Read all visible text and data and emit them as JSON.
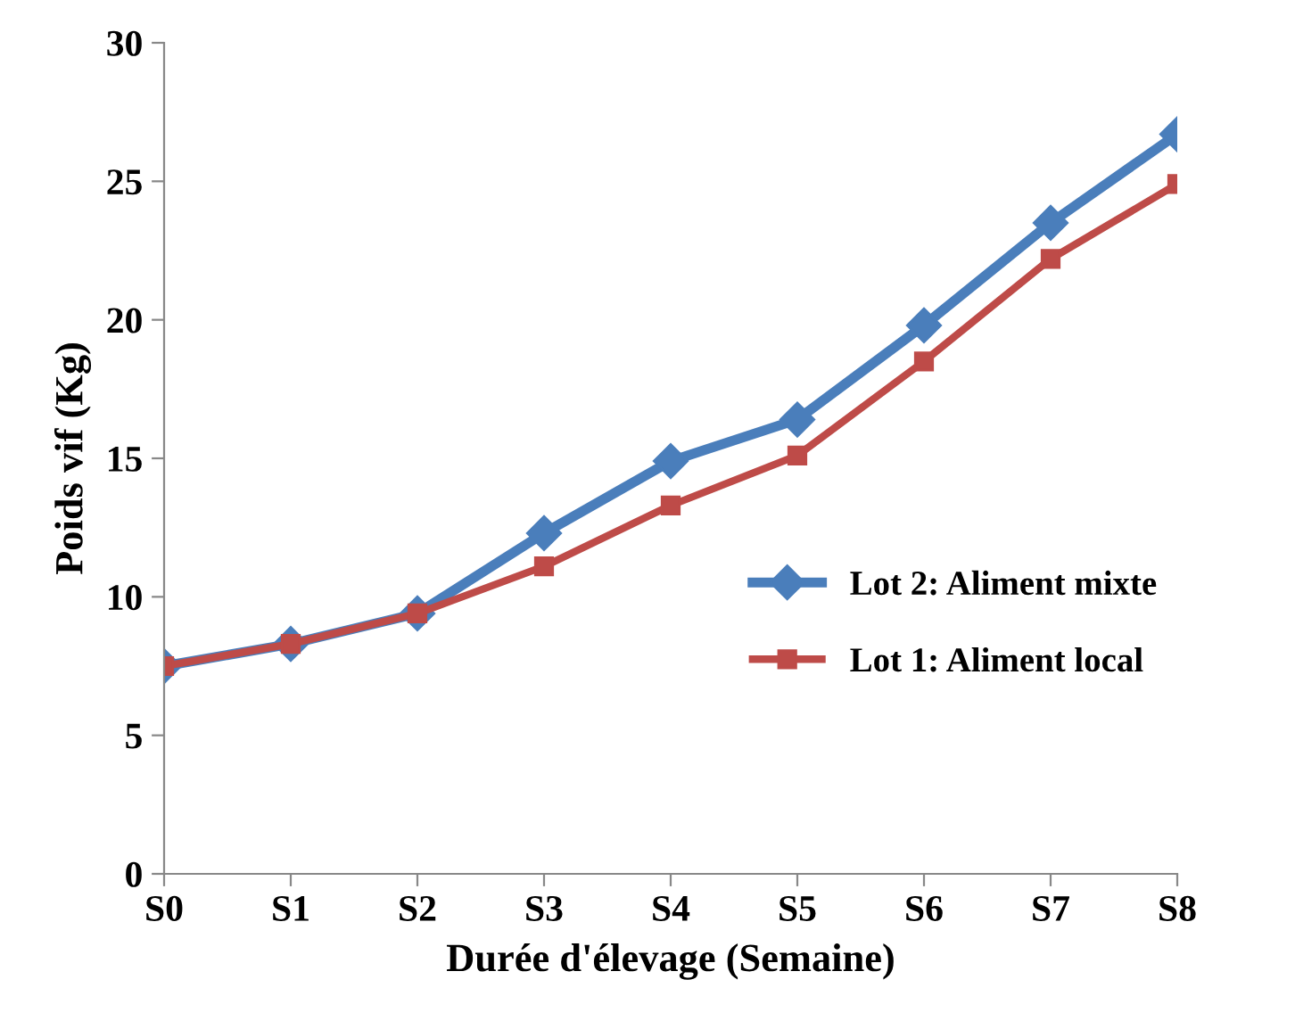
{
  "chart_data": {
    "type": "line",
    "xlabel": "Durée d'élevage (Semaine)",
    "ylabel": "Poids vif (Kg)",
    "categories": [
      "S0",
      "S1",
      "S2",
      "S3",
      "S4",
      "S5",
      "S6",
      "S7",
      "S8"
    ],
    "series": [
      {
        "name": "Lot 2: Aliment mixte",
        "color": "#4a7ebb",
        "marker": "diamond",
        "values": [
          7.5,
          8.3,
          9.4,
          12.3,
          14.9,
          16.4,
          19.8,
          23.5,
          26.7
        ]
      },
      {
        "name": "Lot 1: Aliment local",
        "color": "#be4b48",
        "marker": "square",
        "values": [
          7.5,
          8.3,
          9.4,
          11.1,
          13.3,
          15.1,
          18.5,
          22.2,
          24.9
        ]
      }
    ],
    "ylim": [
      0,
      30
    ],
    "yticks": [
      0,
      5,
      10,
      15,
      20,
      25,
      30
    ],
    "grid": false,
    "legend": "right",
    "line_style": "solid"
  }
}
